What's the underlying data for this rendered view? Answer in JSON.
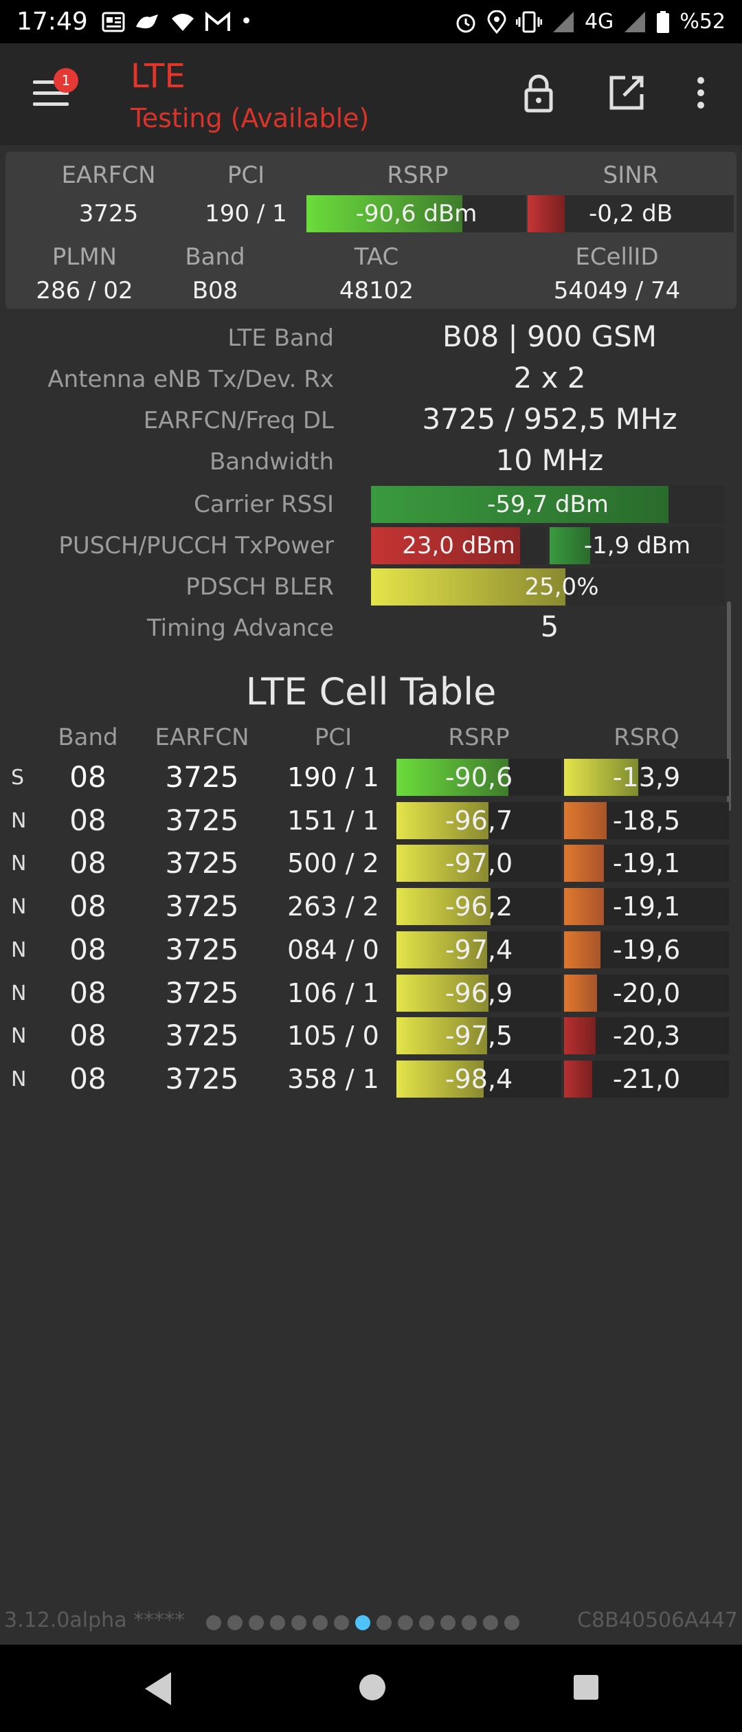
{
  "status_bar": {
    "time": "17:49",
    "network": "4G",
    "battery": "%52",
    "left_icons": [
      "news-icon",
      "fox-icon",
      "wifi-icon",
      "gmail-icon",
      "dot-icon"
    ],
    "right_icons": [
      "alarm-icon",
      "location-icon",
      "vibrate-icon",
      "signal-icon",
      "signal-icon",
      "battery-icon"
    ]
  },
  "app_bar": {
    "title": "LTE",
    "subtitle": "Testing (Available)",
    "badge_count": "1",
    "colors": {
      "title": "#e53528",
      "badge": "#e53935"
    }
  },
  "header": {
    "labels": {
      "earfcn": "EARFCN",
      "pci": "PCI",
      "rsrp": "RSRP",
      "sinr": "SINR",
      "plmn": "PLMN",
      "band": "Band",
      "tac": "TAC",
      "ecellid": "ECellID"
    },
    "values": {
      "earfcn": "3725",
      "pci": "190 / 1",
      "rsrp": "-90,6 dBm",
      "sinr": "-0,2 dB",
      "plmn": "286 / 02",
      "band": "B08",
      "tac": "48102",
      "ecellid": "54049 / 74"
    },
    "rsrp_level": 0.71,
    "sinr_level": 0.18
  },
  "info": [
    {
      "label": "LTE Band",
      "value": "B08 | 900 GSM"
    },
    {
      "label": "Antenna eNB Tx/Dev. Rx",
      "value": "2 x 2"
    },
    {
      "label": "EARFCN/Freq DL",
      "value": "3725 / 952,5 MHz"
    },
    {
      "label": "Bandwidth",
      "value": "10 MHz"
    },
    {
      "label": "Carrier RSSI",
      "value": "-59,7 dBm",
      "level": 0.84
    },
    {
      "label": "PUSCH/PUCCH TxPower",
      "value": "23,0 dBm",
      "value2": "-1,9 dBm",
      "level": 0.85,
      "level2": 0.23
    },
    {
      "label": "PDSCH BLER",
      "value": "25,0",
      "suffix": "%",
      "level": 0.55
    },
    {
      "label": "Timing Advance",
      "value": "5"
    }
  ],
  "cell_table": {
    "title": "LTE Cell Table",
    "headers": [
      "Band",
      "EARFCN",
      "PCI",
      "RSRP",
      "RSRQ"
    ],
    "rows": [
      {
        "type": "S",
        "band": "08",
        "earfcn": "3725",
        "pci": "190 / 1",
        "rsrp": "-90,6",
        "rsrq": "-13,9",
        "rsrp_level": 0.68,
        "rsrq_level": 0.45
      },
      {
        "type": "N",
        "band": "08",
        "earfcn": "3725",
        "pci": "151 / 1",
        "rsrp": "-96,7",
        "rsrq": "-18,5",
        "rsrp_level": 0.56,
        "rsrq_level": 0.26
      },
      {
        "type": "N",
        "band": "08",
        "earfcn": "3725",
        "pci": "500 / 2",
        "rsrp": "-97,0",
        "rsrq": "-19,1",
        "rsrp_level": 0.56,
        "rsrq_level": 0.24
      },
      {
        "type": "N",
        "band": "08",
        "earfcn": "3725",
        "pci": "263 / 2",
        "rsrp": "-96,2",
        "rsrq": "-19,1",
        "rsrp_level": 0.57,
        "rsrq_level": 0.24
      },
      {
        "type": "N",
        "band": "08",
        "earfcn": "3725",
        "pci": "084 / 0",
        "rsrp": "-97,4",
        "rsrq": "-19,6",
        "rsrp_level": 0.55,
        "rsrq_level": 0.22
      },
      {
        "type": "N",
        "band": "08",
        "earfcn": "3725",
        "pci": "106 / 1",
        "rsrp": "-96,9",
        "rsrq": "-20,0",
        "rsrp_level": 0.56,
        "rsrq_level": 0.2
      },
      {
        "type": "N",
        "band": "08",
        "earfcn": "3725",
        "pci": "105 / 0",
        "rsrp": "-97,5",
        "rsrq": "-20,3",
        "rsrp_level": 0.55,
        "rsrq_level": 0.19
      },
      {
        "type": "N",
        "band": "08",
        "earfcn": "3725",
        "pci": "358 / 1",
        "rsrp": "-98,4",
        "rsrq": "-21,0",
        "rsrp_level": 0.53,
        "rsrq_level": 0.17
      }
    ]
  },
  "footer": {
    "version": "3.12.0alpha *****",
    "device_id": "C8B40506A447",
    "page_count": 15,
    "active_page": 7
  }
}
